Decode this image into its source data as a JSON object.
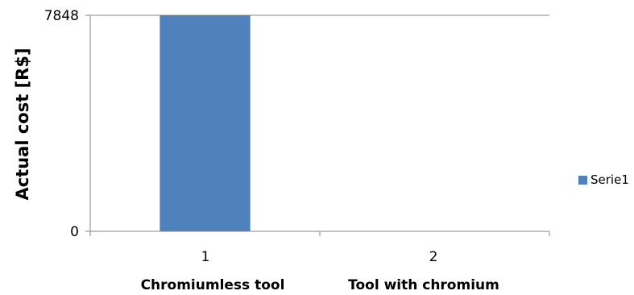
{
  "chart_data": {
    "type": "bar",
    "x": [
      "1",
      "2"
    ],
    "categories": [
      "Chromiumless tool",
      "Tool with chromium"
    ],
    "series": [
      {
        "name": "Serie1",
        "values": [
          7848,
          0
        ],
        "color": "#4F81BD"
      }
    ],
    "ylabel": "Actual cost [R$]",
    "xlabel": "",
    "ylim": [
      0,
      7848
    ],
    "y_ticks": [
      "0",
      "7848"
    ],
    "grid": true,
    "legend_position": "right"
  }
}
